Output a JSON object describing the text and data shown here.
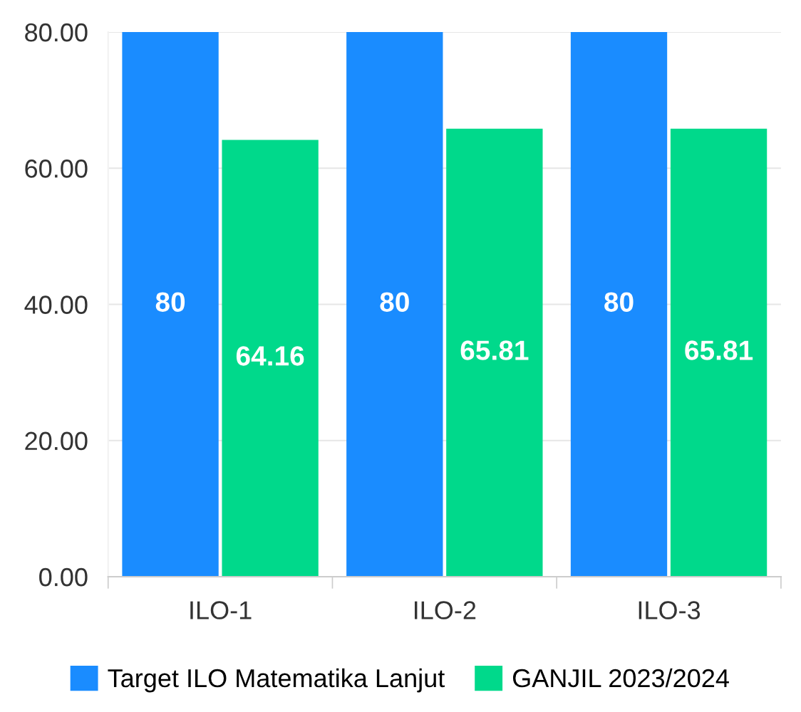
{
  "chart_data": {
    "type": "bar",
    "categories": [
      "ILO-1",
      "ILO-2",
      "ILO-3"
    ],
    "series": [
      {
        "name": "Target ILO Matematika Lanjut",
        "color": "#1a8cff",
        "values": [
          80,
          80,
          80
        ]
      },
      {
        "name": "GANJIL 2023/2024",
        "color": "#00d98b",
        "values": [
          64.16,
          65.81,
          65.81
        ]
      }
    ],
    "ylim": [
      0,
      80
    ],
    "yticks": [
      {
        "value": 0,
        "label": "0.00"
      },
      {
        "value": 20,
        "label": "20.00"
      },
      {
        "value": 40,
        "label": "40.00"
      },
      {
        "value": 60,
        "label": "60.00"
      },
      {
        "value": 80,
        "label": "80.00"
      }
    ],
    "grid": "y",
    "legend": "bottom",
    "data_labels": true
  }
}
